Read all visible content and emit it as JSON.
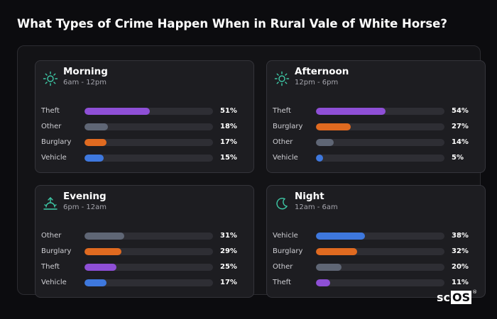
{
  "title": "What Types of Crime Happen When in Rural Vale of White Horse?",
  "colors": {
    "Theft": "#8e4fd6",
    "Other": "#5f6675",
    "Burglary": "#e06a20",
    "Vehicle": "#3e78de",
    "accent": "#3ec9a7"
  },
  "chart_data": [
    {
      "type": "bar",
      "title": "Morning",
      "subtitle": "6am - 12pm",
      "icon": "sun-icon",
      "categories": [
        "Theft",
        "Other",
        "Burglary",
        "Vehicle"
      ],
      "values": [
        51,
        18,
        17,
        15
      ],
      "value_labels": [
        "51%",
        "18%",
        "17%",
        "15%"
      ],
      "xlim": [
        0,
        100
      ]
    },
    {
      "type": "bar",
      "title": "Afternoon",
      "subtitle": "12pm - 6pm",
      "icon": "sun-icon",
      "categories": [
        "Theft",
        "Burglary",
        "Other",
        "Vehicle"
      ],
      "values": [
        54,
        27,
        14,
        5
      ],
      "value_labels": [
        "54%",
        "27%",
        "14%",
        "5%"
      ],
      "xlim": [
        0,
        100
      ]
    },
    {
      "type": "bar",
      "title": "Evening",
      "subtitle": "6pm - 12am",
      "icon": "sunset-icon",
      "categories": [
        "Other",
        "Burglary",
        "Theft",
        "Vehicle"
      ],
      "values": [
        31,
        29,
        25,
        17
      ],
      "value_labels": [
        "31%",
        "29%",
        "25%",
        "17%"
      ],
      "xlim": [
        0,
        100
      ]
    },
    {
      "type": "bar",
      "title": "Night",
      "subtitle": "12am - 6am",
      "icon": "moon-icon",
      "categories": [
        "Vehicle",
        "Burglary",
        "Other",
        "Theft"
      ],
      "values": [
        38,
        32,
        20,
        11
      ],
      "value_labels": [
        "38%",
        "32%",
        "20%",
        "11%"
      ],
      "xlim": [
        0,
        100
      ]
    }
  ],
  "logo": {
    "part1": "sc",
    "part2": "OS",
    "mark": "®"
  }
}
